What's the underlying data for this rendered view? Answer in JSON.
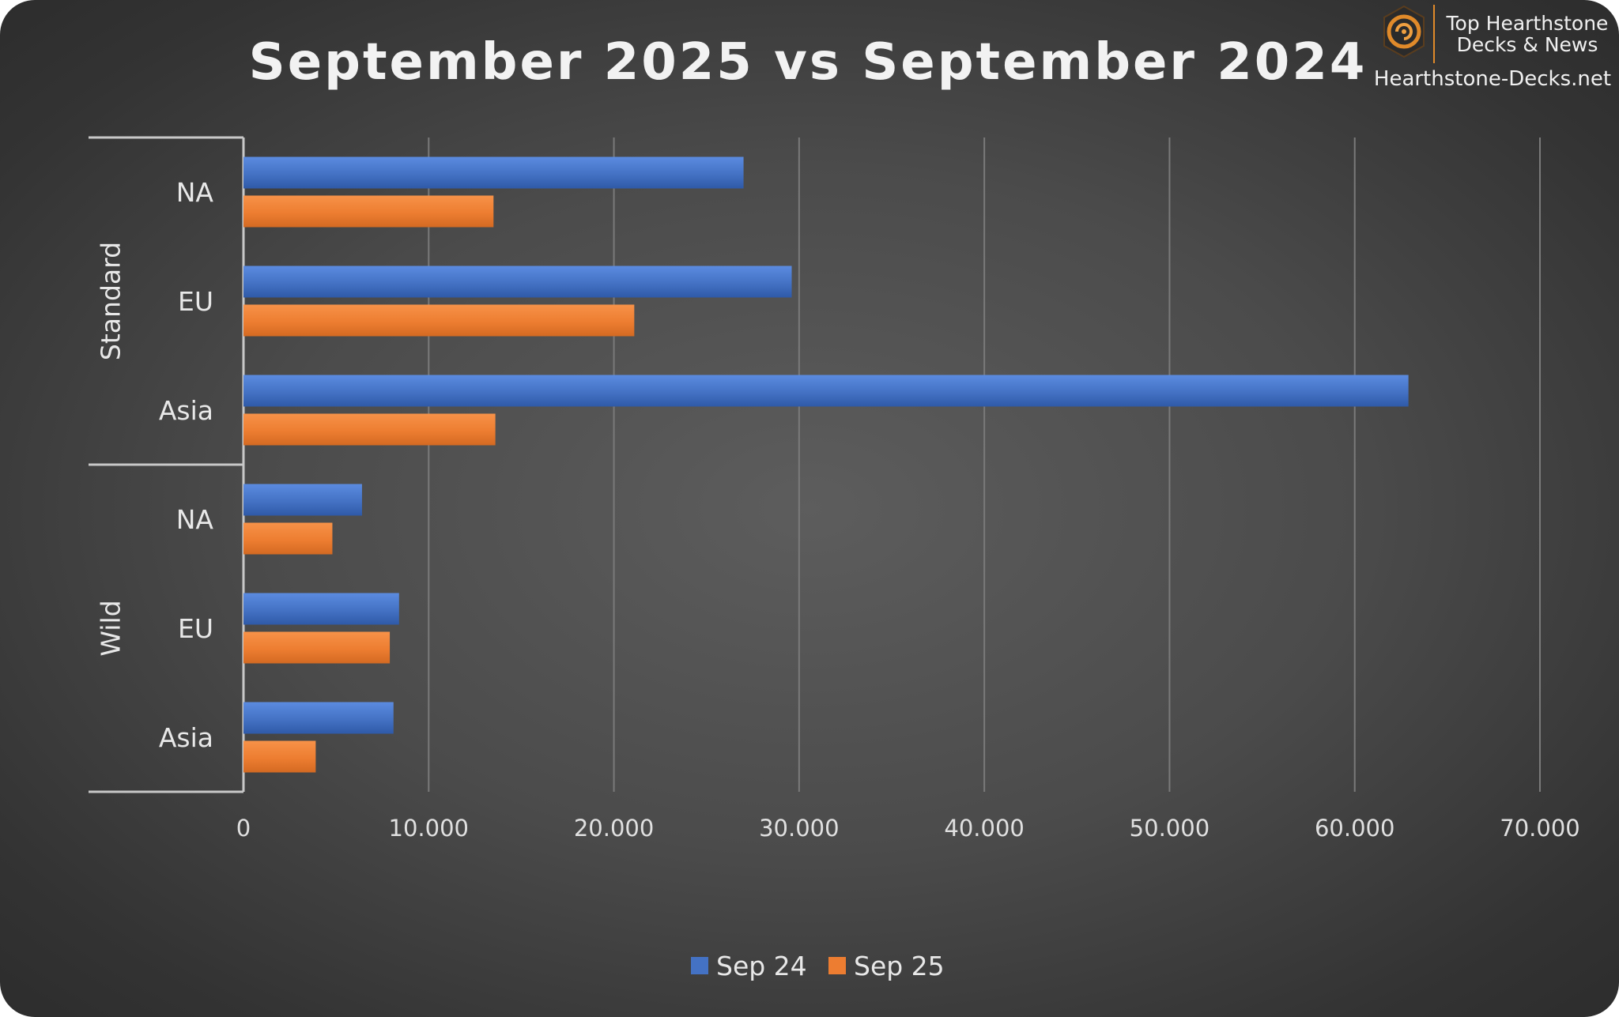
{
  "chart_data": {
    "type": "bar",
    "orientation": "horizontal",
    "title": "September 2025 vs September 2024",
    "groups": [
      {
        "name": "Standard",
        "categories": [
          "NA",
          "EU",
          "Asia"
        ]
      },
      {
        "name": "Wild",
        "categories": [
          "NA",
          "EU",
          "Asia"
        ]
      }
    ],
    "series": [
      {
        "name": "Sep 24",
        "color": "#4472c4",
        "values": [
          27000,
          29600,
          62900,
          6400,
          8400,
          8100
        ]
      },
      {
        "name": "Sep 25",
        "color": "#ed7d31",
        "values": [
          13500,
          21100,
          13600,
          4800,
          7900,
          3900
        ]
      }
    ],
    "xlim": [
      0,
      70000
    ],
    "xticks": [
      0,
      10000,
      20000,
      30000,
      40000,
      50000,
      60000,
      70000
    ],
    "xtick_labels": [
      "0",
      "10.000",
      "20.000",
      "30.000",
      "40.000",
      "50.000",
      "60.000",
      "70.000"
    ],
    "grid": "vertical",
    "legend": "bottom-center"
  },
  "branding": {
    "line1": "Top Hearthstone",
    "line2": "Decks & News",
    "site": "Hearthstone-Decks.net",
    "logo_icon": "hearthstone-logo-icon"
  }
}
